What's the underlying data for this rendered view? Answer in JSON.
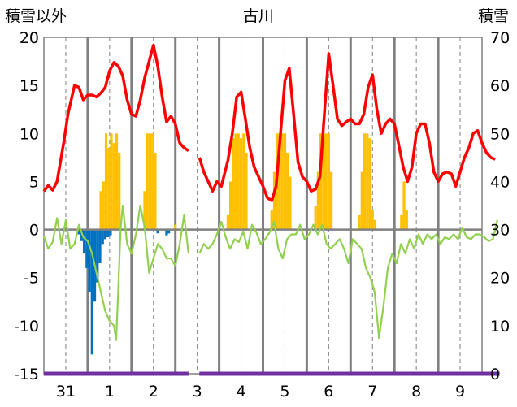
{
  "chart_data": {
    "type": "line",
    "title": "古川",
    "left_axis_label": "積雪以外",
    "right_axis_label": "積雪",
    "left_ylim": [
      -15,
      20
    ],
    "left_yticks": [
      -15,
      -10,
      -5,
      0,
      5,
      10,
      15,
      20
    ],
    "right_ylim": [
      0,
      70
    ],
    "right_yticks": [
      0,
      10,
      20,
      30,
      40,
      50,
      60,
      70
    ],
    "x_range": [
      0,
      10
    ],
    "x_tick_labels": [
      {
        "x": 0.5,
        "label": "31"
      },
      {
        "x": 1.5,
        "label": "1"
      },
      {
        "x": 2.5,
        "label": "2"
      },
      {
        "x": 3.5,
        "label": "3"
      },
      {
        "x": 4.5,
        "label": "4"
      },
      {
        "x": 5.5,
        "label": "5"
      },
      {
        "x": 6.5,
        "label": "6"
      },
      {
        "x": 7.5,
        "label": "7"
      },
      {
        "x": 8.5,
        "label": "8"
      },
      {
        "x": 9.5,
        "label": "9"
      }
    ],
    "grid": {
      "dashed_at_day_centers": true,
      "solid_at_day_boundaries": true
    },
    "colors": {
      "red": "#ff0000",
      "green": "#92d050",
      "orange": "#ffc000",
      "blue": "#0070c0",
      "purple": "#7030a0",
      "zero_line": "#808080",
      "grid": "#808080"
    },
    "series": [
      {
        "color": "red",
        "axis": "left",
        "segments": [
          [
            [
              0.0,
              4.0
            ],
            [
              0.1,
              4.6
            ],
            [
              0.2,
              4.1
            ],
            [
              0.3,
              5.0
            ],
            [
              0.45,
              9.0
            ],
            [
              0.55,
              12.0
            ],
            [
              0.7,
              15.0
            ],
            [
              0.8,
              14.8
            ],
            [
              0.9,
              13.5
            ],
            [
              1.0,
              14.0
            ],
            [
              1.1,
              14.0
            ],
            [
              1.2,
              13.8
            ],
            [
              1.3,
              14.2
            ],
            [
              1.4,
              14.8
            ],
            [
              1.5,
              16.5
            ],
            [
              1.6,
              17.4
            ],
            [
              1.7,
              17.0
            ],
            [
              1.8,
              16.0
            ],
            [
              1.9,
              13.5
            ],
            [
              2.0,
              12.0
            ],
            [
              2.1,
              11.8
            ],
            [
              2.2,
              13.5
            ],
            [
              2.3,
              15.8
            ],
            [
              2.4,
              17.5
            ],
            [
              2.5,
              19.2
            ],
            [
              2.6,
              17.0
            ],
            [
              2.7,
              13.8
            ],
            [
              2.8,
              11.2
            ],
            [
              2.9,
              11.8
            ],
            [
              3.0,
              11.0
            ],
            [
              3.1,
              9.0
            ],
            [
              3.2,
              8.5
            ],
            [
              3.3,
              8.2
            ]
          ],
          [
            [
              3.55,
              7.5
            ],
            [
              3.65,
              6.0
            ],
            [
              3.75,
              5.0
            ],
            [
              3.85,
              4.0
            ],
            [
              3.95,
              5.0
            ],
            [
              4.05,
              4.5
            ],
            [
              4.2,
              7.2
            ],
            [
              4.3,
              10.0
            ],
            [
              4.4,
              13.8
            ],
            [
              4.5,
              14.3
            ],
            [
              4.6,
              11.5
            ],
            [
              4.7,
              8.5
            ],
            [
              4.8,
              6.5
            ],
            [
              4.9,
              5.5
            ],
            [
              5.0,
              4.5
            ],
            [
              5.1,
              3.3
            ],
            [
              5.2,
              3.0
            ],
            [
              5.3,
              4.5
            ],
            [
              5.4,
              10.0
            ],
            [
              5.5,
              15.5
            ],
            [
              5.6,
              16.8
            ],
            [
              5.7,
              12.0
            ],
            [
              5.8,
              7.0
            ],
            [
              5.9,
              5.5
            ],
            [
              6.0,
              5.0
            ],
            [
              6.1,
              4.0
            ],
            [
              6.2,
              4.2
            ],
            [
              6.3,
              5.5
            ],
            [
              6.4,
              12.0
            ],
            [
              6.5,
              18.3
            ],
            [
              6.6,
              15.0
            ],
            [
              6.7,
              11.5
            ],
            [
              6.8,
              10.8
            ],
            [
              6.9,
              11.2
            ],
            [
              7.0,
              11.5
            ],
            [
              7.1,
              11.0
            ],
            [
              7.2,
              11.0
            ],
            [
              7.3,
              12.0
            ],
            [
              7.4,
              14.8
            ],
            [
              7.5,
              16.1
            ],
            [
              7.6,
              12.5
            ],
            [
              7.7,
              10.0
            ],
            [
              7.8,
              11.0
            ],
            [
              7.9,
              11.5
            ],
            [
              8.0,
              11.0
            ],
            [
              8.1,
              8.8
            ],
            [
              8.2,
              6.5
            ],
            [
              8.3,
              5.0
            ],
            [
              8.4,
              6.5
            ],
            [
              8.5,
              10.0
            ],
            [
              8.6,
              11.0
            ],
            [
              8.7,
              11.0
            ],
            [
              8.8,
              9.0
            ],
            [
              8.9,
              6.0
            ],
            [
              9.0,
              5.0
            ],
            [
              9.1,
              5.8
            ],
            [
              9.2,
              6.0
            ],
            [
              9.3,
              5.8
            ],
            [
              9.4,
              4.5
            ],
            [
              9.5,
              6.0
            ],
            [
              9.6,
              7.5
            ],
            [
              9.7,
              8.5
            ],
            [
              9.8,
              10.0
            ],
            [
              9.9,
              10.3
            ],
            [
              10.0,
              9.0
            ],
            [
              10.1,
              8.0
            ],
            [
              10.2,
              7.5
            ],
            [
              10.3,
              7.3
            ]
          ]
        ]
      },
      {
        "color": "green",
        "axis": "left",
        "segments": [
          [
            [
              0.0,
              -0.7
            ],
            [
              0.1,
              -2.0
            ],
            [
              0.2,
              -1.3
            ],
            [
              0.3,
              1.2
            ],
            [
              0.4,
              -1.5
            ],
            [
              0.5,
              1.0
            ],
            [
              0.6,
              -2.0
            ],
            [
              0.7,
              -1.5
            ],
            [
              0.8,
              0.5
            ],
            [
              0.9,
              -0.8
            ],
            [
              1.0,
              -1.2
            ],
            [
              1.1,
              -2.5
            ],
            [
              1.2,
              -4.5
            ],
            [
              1.3,
              -6.5
            ],
            [
              1.4,
              -8.5
            ],
            [
              1.5,
              -9.5
            ],
            [
              1.6,
              -10.0
            ],
            [
              1.65,
              -11.5
            ],
            [
              1.7,
              -6.0
            ],
            [
              1.75,
              0.0
            ],
            [
              1.8,
              2.5
            ],
            [
              1.9,
              -1.5
            ],
            [
              2.0,
              -2.5
            ],
            [
              2.1,
              -0.5
            ],
            [
              2.2,
              2.5
            ],
            [
              2.3,
              0.2
            ],
            [
              2.4,
              -4.5
            ],
            [
              2.5,
              -3.0
            ],
            [
              2.6,
              -1.5
            ],
            [
              2.7,
              -2.0
            ],
            [
              2.8,
              -3.0
            ],
            [
              2.9,
              -3.0
            ],
            [
              3.0,
              -3.8
            ],
            [
              3.1,
              -1.5
            ],
            [
              3.2,
              1.5
            ],
            [
              3.3,
              -2.5
            ]
          ],
          [
            [
              3.55,
              -2.5
            ],
            [
              3.65,
              -1.5
            ],
            [
              3.75,
              -2.0
            ],
            [
              3.85,
              -1.5
            ],
            [
              3.95,
              -0.5
            ],
            [
              4.05,
              0.8
            ],
            [
              4.15,
              -0.8
            ],
            [
              4.25,
              -2.0
            ],
            [
              4.35,
              -1.0
            ],
            [
              4.45,
              -1.3
            ],
            [
              4.55,
              -0.2
            ],
            [
              4.65,
              -2.0
            ],
            [
              4.75,
              0.5
            ],
            [
              4.85,
              -0.3
            ],
            [
              4.95,
              -1.5
            ],
            [
              5.05,
              -1.0
            ],
            [
              5.15,
              -0.3
            ],
            [
              5.25,
              0.8
            ],
            [
              5.35,
              -2.0
            ],
            [
              5.45,
              -3.0
            ],
            [
              5.55,
              -1.0
            ],
            [
              5.65,
              -0.5
            ],
            [
              5.75,
              -0.5
            ],
            [
              5.85,
              0.5
            ],
            [
              5.95,
              -1.0
            ],
            [
              6.05,
              -0.5
            ],
            [
              6.15,
              0.5
            ],
            [
              6.25,
              -0.5
            ],
            [
              6.35,
              0.5
            ],
            [
              6.45,
              -1.5
            ],
            [
              6.55,
              -2.0
            ],
            [
              6.65,
              -1.5
            ],
            [
              6.75,
              -1.0
            ],
            [
              6.85,
              -2.0
            ],
            [
              6.95,
              -3.5
            ],
            [
              7.05,
              -1.0
            ],
            [
              7.15,
              -1.5
            ],
            [
              7.25,
              -2.0
            ],
            [
              7.35,
              -4.0
            ],
            [
              7.45,
              -5.0
            ],
            [
              7.55,
              -6.5
            ],
            [
              7.65,
              -11.3
            ],
            [
              7.75,
              -8.0
            ],
            [
              7.85,
              -4.0
            ],
            [
              7.95,
              -2.5
            ],
            [
              8.05,
              -3.5
            ],
            [
              8.15,
              -1.5
            ],
            [
              8.25,
              -2.5
            ],
            [
              8.35,
              -1.0
            ],
            [
              8.45,
              -2.0
            ],
            [
              8.55,
              -0.5
            ],
            [
              8.65,
              -1.5
            ],
            [
              8.75,
              -0.5
            ],
            [
              8.85,
              -1.0
            ],
            [
              8.95,
              -0.5
            ],
            [
              9.05,
              -1.5
            ],
            [
              9.15,
              -0.8
            ],
            [
              9.25,
              -1.0
            ],
            [
              9.35,
              -0.5
            ],
            [
              9.45,
              -1.0
            ],
            [
              9.55,
              0.2
            ],
            [
              9.65,
              -0.8
            ],
            [
              9.75,
              -1.0
            ],
            [
              9.85,
              -0.5
            ],
            [
              9.95,
              -0.5
            ],
            [
              10.05,
              -0.8
            ],
            [
              10.15,
              -1.2
            ],
            [
              10.25,
              -1.0
            ],
            [
              10.35,
              1.0
            ]
          ]
        ]
      },
      {
        "color": "purple",
        "axis": "left",
        "segments": [
          [
            [
              0.0,
              -15.0
            ],
            [
              3.3,
              -15.0
            ]
          ],
          [
            [
              3.55,
              -15.0
            ],
            [
              10.4,
              -15.0
            ]
          ]
        ]
      }
    ],
    "bars": [
      {
        "color": "orange",
        "axis": "left",
        "points": [
          [
            1.3,
            4.0
          ],
          [
            1.36,
            5.0
          ],
          [
            1.42,
            10.0
          ],
          [
            1.48,
            8.5
          ],
          [
            1.54,
            10.0
          ],
          [
            1.6,
            9.0
          ],
          [
            1.66,
            10.0
          ],
          [
            1.72,
            8.0
          ],
          [
            2.3,
            4.0
          ],
          [
            2.36,
            10.0
          ],
          [
            2.42,
            10.0
          ],
          [
            2.48,
            10.0
          ],
          [
            2.54,
            8.0
          ],
          [
            3.0,
            0.5
          ],
          [
            4.2,
            1.5
          ],
          [
            4.26,
            5.0
          ],
          [
            4.32,
            9.5
          ],
          [
            4.38,
            10.0
          ],
          [
            4.44,
            10.0
          ],
          [
            4.5,
            9.5
          ],
          [
            4.56,
            10.0
          ],
          [
            4.62,
            8.0
          ],
          [
            5.2,
            2.0
          ],
          [
            5.26,
            6.0
          ],
          [
            5.32,
            10.0
          ],
          [
            5.38,
            10.0
          ],
          [
            5.44,
            10.0
          ],
          [
            5.5,
            10.0
          ],
          [
            5.56,
            8.0
          ],
          [
            5.62,
            5.5
          ],
          [
            6.2,
            2.5
          ],
          [
            6.26,
            6.0
          ],
          [
            6.32,
            10.0
          ],
          [
            6.38,
            10.0
          ],
          [
            6.44,
            10.0
          ],
          [
            6.5,
            10.0
          ],
          [
            6.56,
            6.0
          ],
          [
            7.2,
            1.5
          ],
          [
            7.26,
            6.0
          ],
          [
            7.32,
            10.0
          ],
          [
            7.38,
            10.0
          ],
          [
            7.44,
            9.5
          ],
          [
            7.5,
            2.0
          ],
          [
            7.56,
            1.0
          ],
          [
            8.16,
            1.5
          ],
          [
            8.22,
            5.0
          ],
          [
            8.28,
            2.0
          ]
        ]
      },
      {
        "color": "blue",
        "axis": "left",
        "points": [
          [
            0.8,
            -0.5
          ],
          [
            0.86,
            -1.2
          ],
          [
            0.92,
            -2.5
          ],
          [
            0.98,
            -4.0
          ],
          [
            1.04,
            -6.5
          ],
          [
            1.1,
            -13.0
          ],
          [
            1.16,
            -7.5
          ],
          [
            1.22,
            -5.5
          ],
          [
            1.28,
            -3.5
          ],
          [
            1.34,
            -1.5
          ],
          [
            1.4,
            -1.0
          ],
          [
            1.46,
            -0.8
          ],
          [
            1.52,
            -0.6
          ],
          [
            2.6,
            -0.4
          ],
          [
            2.8,
            -0.6
          ],
          [
            2.85,
            -0.4
          ]
        ]
      }
    ]
  }
}
